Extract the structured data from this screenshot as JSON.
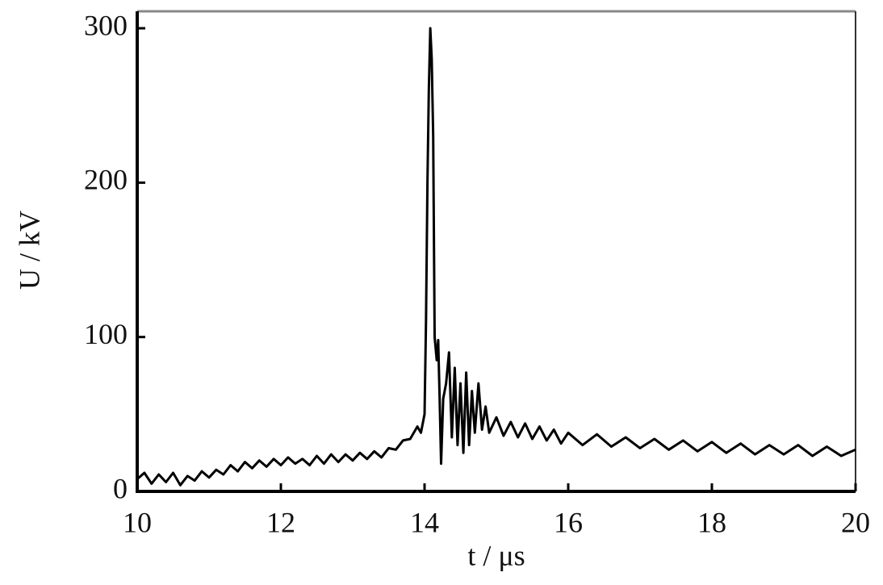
{
  "chart_data": {
    "type": "line",
    "x_label": "t / μs",
    "y_label": "U / kV",
    "x": [
      10.0,
      10.1,
      10.2,
      10.3,
      10.4,
      10.5,
      10.6,
      10.7,
      10.8,
      10.9,
      11.0,
      11.1,
      11.2,
      11.3,
      11.4,
      11.5,
      11.6,
      11.7,
      11.8,
      11.9,
      12.0,
      12.1,
      12.2,
      12.3,
      12.4,
      12.5,
      12.6,
      12.7,
      12.8,
      12.9,
      13.0,
      13.1,
      13.2,
      13.3,
      13.4,
      13.5,
      13.6,
      13.7,
      13.8,
      13.9,
      13.95,
      14.0,
      14.02,
      14.04,
      14.06,
      14.08,
      14.1,
      14.12,
      14.14,
      14.17,
      14.19,
      14.21,
      14.23,
      14.26,
      14.3,
      14.34,
      14.38,
      14.42,
      14.46,
      14.5,
      14.54,
      14.58,
      14.62,
      14.66,
      14.7,
      14.75,
      14.8,
      14.85,
      14.9,
      15.0,
      15.1,
      15.2,
      15.3,
      15.4,
      15.5,
      15.6,
      15.7,
      15.8,
      15.9,
      16.0,
      16.2,
      16.4,
      16.6,
      16.8,
      17.0,
      17.2,
      17.4,
      17.6,
      17.8,
      18.0,
      18.2,
      18.4,
      18.6,
      18.8,
      19.0,
      19.2,
      19.4,
      19.6,
      19.8,
      20.0
    ],
    "series": [
      {
        "color": "#000000",
        "values": [
          8,
          12,
          5,
          11,
          6,
          12,
          4,
          10,
          7,
          13,
          9,
          14,
          11,
          17,
          13,
          19,
          15,
          20,
          16,
          21,
          17,
          22,
          18,
          21,
          17,
          23,
          18,
          24,
          19,
          24,
          20,
          25,
          21,
          26,
          22,
          28,
          27,
          33,
          34,
          42,
          38,
          50,
          110,
          200,
          260,
          300,
          280,
          230,
          100,
          85,
          98,
          60,
          18,
          60,
          70,
          90,
          35,
          80,
          30,
          70,
          25,
          77,
          30,
          65,
          38,
          70,
          40,
          55,
          38,
          48,
          36,
          45,
          35,
          44,
          34,
          42,
          33,
          40,
          31,
          38,
          30,
          37,
          29,
          35,
          28,
          34,
          27,
          33,
          26,
          32,
          25,
          31,
          24,
          30,
          24,
          30,
          23,
          29,
          23,
          27
        ]
      }
    ],
    "xlim": [
      10,
      20
    ],
    "ylim": [
      0,
      311
    ],
    "xticks": [
      10,
      12,
      14,
      16,
      18,
      20
    ],
    "yticks": [
      0,
      100,
      200,
      300
    ]
  }
}
